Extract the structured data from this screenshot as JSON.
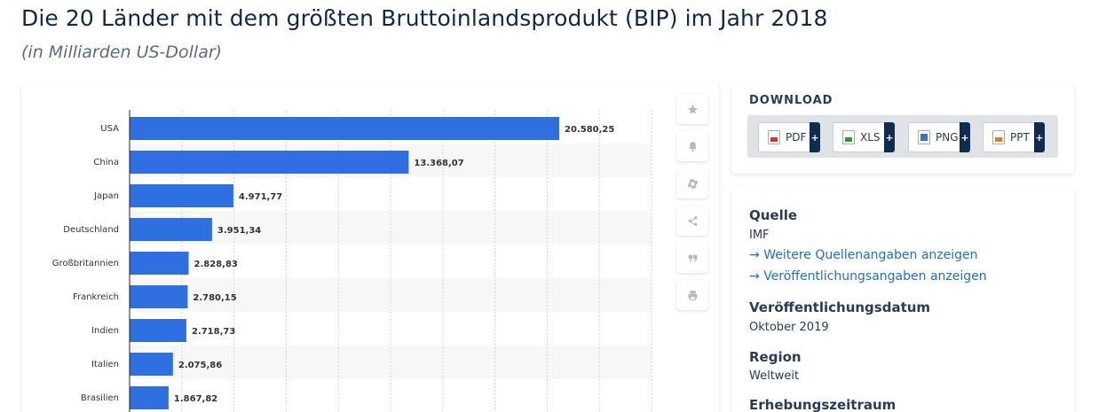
{
  "title": "Die 20 Länder mit dem größten Bruttoinlandsprodukt (BIP) im Jahr 2018",
  "subtitle": "(in Milliarden US-Dollar)",
  "chart_data": {
    "type": "bar",
    "orientation": "horizontal",
    "categories": [
      "USA",
      "China",
      "Japan",
      "Deutschland",
      "Großbritannien",
      "Frankreich",
      "Indien",
      "Italien",
      "Brasilien"
    ],
    "values": [
      20580.25,
      13368.07,
      4971.77,
      3951.34,
      2828.83,
      2780.15,
      2718.73,
      2075.86,
      1867.82
    ],
    "value_labels": [
      "20.580,25",
      "13.368,07",
      "4.971,77",
      "3.951,34",
      "2.828,83",
      "2.780,15",
      "2.718,73",
      "2.075,86",
      "1.867,82"
    ],
    "xlim": [
      0,
      25000
    ],
    "grid": true,
    "bar_color": "#2f6fe0",
    "title": "Die 20 Länder mit dem größten Bruttoinlandsprodukt (BIP) im Jahr 2018",
    "ylabel": "",
    "xlabel": ""
  },
  "tools": [
    {
      "name": "star-icon"
    },
    {
      "name": "bell-icon"
    },
    {
      "name": "gear-icon"
    },
    {
      "name": "share-icon"
    },
    {
      "name": "quote-icon"
    },
    {
      "name": "print-icon"
    }
  ],
  "download": {
    "title": "DOWNLOAD",
    "buttons": [
      {
        "label": "PDF",
        "color": "#d9342b"
      },
      {
        "label": "XLS",
        "color": "#2e9a3a"
      },
      {
        "label": "PNG",
        "color": "#3a6fc4"
      },
      {
        "label": "PPT",
        "color": "#e07b22"
      }
    ],
    "plus": "+"
  },
  "info": {
    "source_heading": "Quelle",
    "source_value": "IMF",
    "link_more_sources": "Weitere Quellenangaben anzeigen",
    "link_publication": "Veröffentlichungsangaben anzeigen",
    "pubdate_heading": "Veröffentlichungsdatum",
    "pubdate_value": "Oktober 2019",
    "region_heading": "Region",
    "region_value": "Weltweit",
    "period_heading": "Erhebungszeitraum"
  }
}
